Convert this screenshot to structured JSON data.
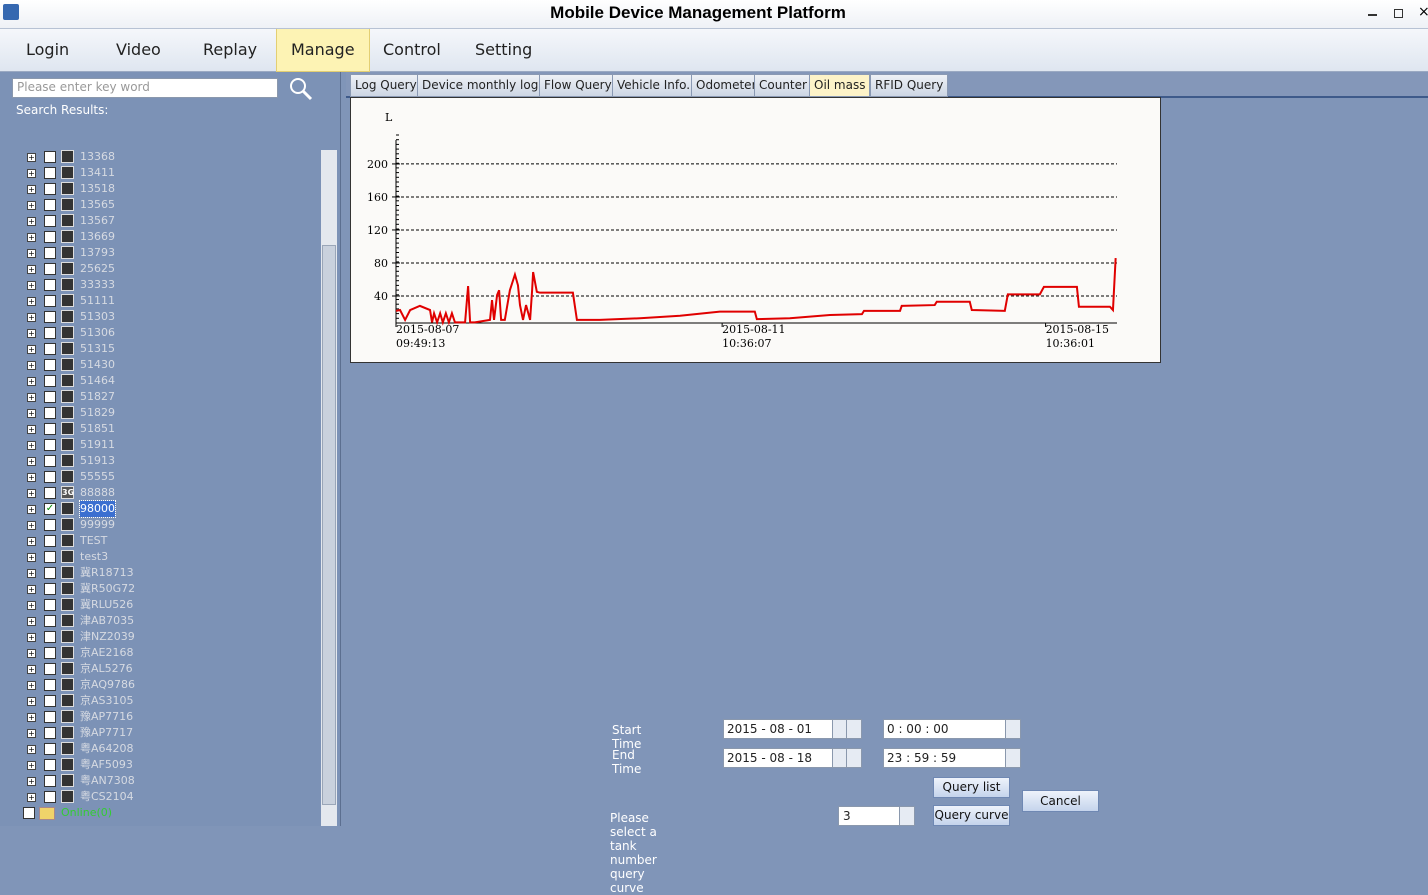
{
  "window": {
    "title": "Mobile Device Management Platform"
  },
  "menu": [
    "Login",
    "Video",
    "Replay",
    "Manage",
    "Control",
    "Setting"
  ],
  "menu_selected": "Manage",
  "search": {
    "placeholder": "Please enter key word",
    "results_label": "Search Results:"
  },
  "tree": {
    "items": [
      {
        "label": "13368"
      },
      {
        "label": "13411"
      },
      {
        "label": "13518"
      },
      {
        "label": "13565"
      },
      {
        "label": "13567"
      },
      {
        "label": "13669"
      },
      {
        "label": "13793"
      },
      {
        "label": "25625"
      },
      {
        "label": "33333"
      },
      {
        "label": "51111"
      },
      {
        "label": "51303"
      },
      {
        "label": "51306"
      },
      {
        "label": "51315"
      },
      {
        "label": "51430"
      },
      {
        "label": "51464"
      },
      {
        "label": "51827"
      },
      {
        "label": "51829"
      },
      {
        "label": "51851"
      },
      {
        "label": "51911"
      },
      {
        "label": "51913"
      },
      {
        "label": "55555"
      },
      {
        "label": "88888",
        "icon": "3G"
      },
      {
        "label": "98000",
        "checked": true
      },
      {
        "label": "99999"
      },
      {
        "label": "TEST"
      },
      {
        "label": "test3"
      },
      {
        "label": "冀R18713"
      },
      {
        "label": "冀R50G72"
      },
      {
        "label": "冀RLU526"
      },
      {
        "label": "津AB7035"
      },
      {
        "label": "津NZ2039"
      },
      {
        "label": "京AE2168"
      },
      {
        "label": "京AL5276"
      },
      {
        "label": "京AQ9786"
      },
      {
        "label": "京AS3105"
      },
      {
        "label": "豫AP7716"
      },
      {
        "label": "豫AP7717"
      },
      {
        "label": "粤A64208"
      },
      {
        "label": "粤AF5093"
      },
      {
        "label": "粤AN7308"
      },
      {
        "label": "粤CS2104"
      }
    ],
    "group": "Online(0)"
  },
  "tabs": [
    "Log Query",
    "Device monthly logs",
    "Flow Query",
    "Vehicle Info.",
    "Odometer",
    "Counter",
    "Oil mass",
    "RFID Query"
  ],
  "tab_selected": "Oil mass",
  "chart_data": {
    "type": "line",
    "y_label": "L",
    "color": "#e00000",
    "grid": true,
    "xlim": [
      0,
      214
    ],
    "ylim": [
      0,
      229
    ],
    "yticks": [
      40,
      80,
      120,
      160,
      200
    ],
    "xticks": [
      {
        "value": 0,
        "label": "2015-08-07",
        "sublabel": "09:49:13"
      },
      {
        "value": 96.8,
        "label": "2015-08-11",
        "sublabel": "10:36:07"
      },
      {
        "value": 192.8,
        "label": "2015-08-15",
        "sublabel": "10:36:01"
      }
    ],
    "x": [
      0,
      1.2,
      2.7,
      4.2,
      7.1,
      10.1,
      10.7,
      11.3,
      12.2,
      13.1,
      13.9,
      14.8,
      15.7,
      16.6,
      17.5,
      19,
      20.5,
      21.4,
      22,
      23.4,
      27.9,
      28.5,
      29.1,
      30,
      30.6,
      31.2,
      32.3,
      33.8,
      35.3,
      36.2,
      36.8,
      37.7,
      38.6,
      39.8,
      40.4,
      40.7,
      41.8,
      42.7,
      52.5,
      53.7,
      60.5,
      72.4,
      84.3,
      96.1,
      106.5,
      107.1,
      116.9,
      128.8,
      138.3,
      138.9,
      149.6,
      150.1,
      159.9,
      160.5,
      170.3,
      170.9,
      180.7,
      181.6,
      191.1,
      192.3,
      202.1,
      202.7,
      211.9,
      212.8,
      213.6
    ],
    "values": [
      22,
      23,
      11,
      23,
      28,
      23,
      8,
      19,
      8,
      19,
      8,
      19,
      8,
      19,
      8,
      8,
      8,
      52,
      8,
      8,
      11,
      35,
      11,
      41,
      47,
      11,
      11,
      47,
      66,
      53,
      29,
      11,
      29,
      11,
      47,
      69,
      45,
      44,
      44,
      11,
      11,
      13,
      16,
      21,
      21,
      12,
      13,
      17,
      18,
      22,
      22,
      28,
      29,
      33,
      33,
      23,
      22,
      42,
      42,
      51,
      51,
      27,
      27,
      23,
      86
    ]
  },
  "form": {
    "start_label": "Start Time",
    "end_label": "End Time",
    "start_date": "2015 - 08 - 01",
    "start_time": "0 : 00 : 00",
    "end_date": "2015 - 08 - 18",
    "end_time": "23 : 59 : 59",
    "tank_label": "Please select a tank number query curve",
    "tank_value": "3",
    "query_list": "Query list",
    "query_curve": "Query curve",
    "cancel": "Cancel"
  }
}
